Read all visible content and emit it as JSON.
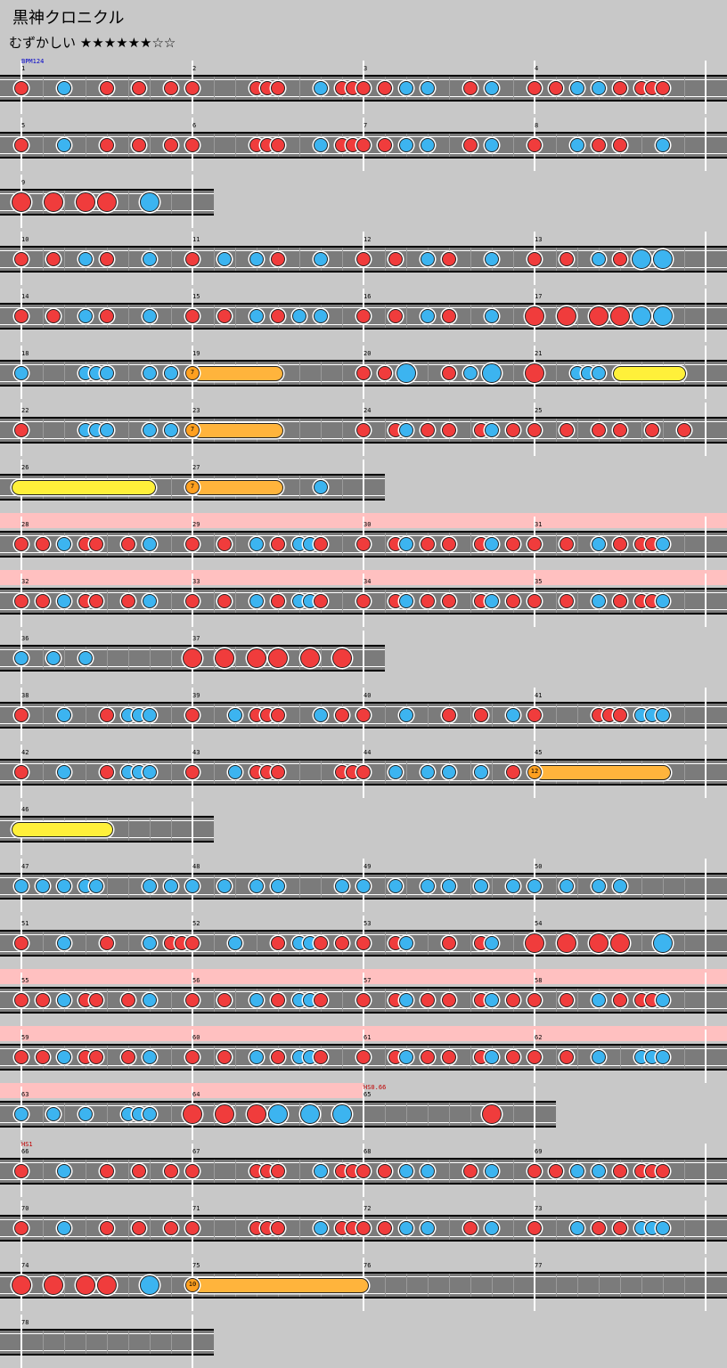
{
  "title": "黒神クロニクル",
  "difficulty": {
    "label": "むずかしい",
    "stars": "★★★★★★☆☆"
  },
  "colors": {
    "don": "#f03c3c",
    "ka": "#3cb4f0",
    "drumroll": "#fff03a",
    "balloon": "#ffb43c",
    "gogo": "#ffc0c0",
    "lane": "#7b7b7b"
  },
  "rows": [
    {
      "y": 64,
      "end": 816,
      "measures": [
        {
          "x": 24,
          "num": "1"
        },
        {
          "x": 216,
          "num": "2"
        },
        {
          "x": 408,
          "num": "3"
        },
        {
          "x": 600,
          "num": "4"
        }
      ],
      "bars": [
        24,
        216,
        408,
        600,
        792
      ],
      "events": [
        {
          "x": 24,
          "text": "BPM124",
          "kind": "bpm"
        }
      ],
      "notes": "D24 K72 D120 D156 D192 D216 D288 D300 D312 K360 D384 D396 D408 D432 K456 K480 D528 K552 D600 D624 K648 K672 D696 D720 D732 D744"
    },
    {
      "y": 128,
      "end": 816,
      "measures": [
        {
          "x": 24,
          "num": "5"
        },
        {
          "x": 216,
          "num": "6"
        },
        {
          "x": 408,
          "num": "7"
        },
        {
          "x": 600,
          "num": "8"
        }
      ],
      "bars": [
        24,
        216,
        408,
        600,
        792
      ],
      "notes": "D24 K72 D120 D156 D192 D216 D288 D300 D312 K360 D384 D396 D408 D432 K456 K480 D528 K552 D600 K648 D672 D696 K744"
    },
    {
      "y": 192,
      "end": 240,
      "measures": [
        {
          "x": 24,
          "num": "9"
        }
      ],
      "bars": [
        24,
        216
      ],
      "notes": "DL24 DL60 DL96 DL120 KL168"
    },
    {
      "y": 256,
      "end": 816,
      "measures": [
        {
          "x": 24,
          "num": "10"
        },
        {
          "x": 216,
          "num": "11"
        },
        {
          "x": 408,
          "num": "12"
        },
        {
          "x": 600,
          "num": "13"
        }
      ],
      "bars": [
        24,
        216,
        408,
        600,
        792
      ],
      "notes": "D24 D60 K96 D120 K168 D216 K252 K288 D312 K360 D408 D444 K480 D504 K552 D600 D636 K672 D696 KL720 KL744"
    },
    {
      "y": 320,
      "end": 816,
      "measures": [
        {
          "x": 24,
          "num": "14"
        },
        {
          "x": 216,
          "num": "15"
        },
        {
          "x": 408,
          "num": "16"
        },
        {
          "x": 600,
          "num": "17"
        }
      ],
      "bars": [
        24,
        216,
        408,
        600,
        792
      ],
      "notes": "D24 D60 K96 D120 K168 D216 D252 K288 D312 K336 K360 D408 D444 K480 D504 K552 DL600 DL636 DL672 DL696 KL720 KL744"
    },
    {
      "y": 384,
      "end": 816,
      "measures": [
        {
          "x": 24,
          "num": "18"
        },
        {
          "x": 216,
          "num": "19"
        },
        {
          "x": 408,
          "num": "20"
        },
        {
          "x": 600,
          "num": "21"
        }
      ],
      "bars": [
        24,
        216,
        408,
        600,
        792
      ],
      "rolls": [
        {
          "type": "balloon",
          "x1": 216,
          "x2": 318,
          "count": "7"
        },
        {
          "type": "drumroll",
          "x1": 688,
          "x2": 770
        }
      ],
      "notes": "K24 K96 K108 K120 K168 K192 D408 D432 KL456 D504 K528 KL552 DL600 K648 K660 K672"
    },
    {
      "y": 448,
      "end": 816,
      "measures": [
        {
          "x": 24,
          "num": "22"
        },
        {
          "x": 216,
          "num": "23"
        },
        {
          "x": 408,
          "num": "24"
        },
        {
          "x": 600,
          "num": "25"
        }
      ],
      "bars": [
        24,
        216,
        408,
        600,
        792
      ],
      "rolls": [
        {
          "type": "balloon",
          "x1": 216,
          "x2": 318,
          "count": "7"
        }
      ],
      "notes": "D24 K96 K108 K120 K168 K192 D408 D444 K456 D480 D504 D540 K552 D576 D600 D636 D672 D696 D732 D768"
    },
    {
      "y": 512,
      "end": 432,
      "measures": [
        {
          "x": 24,
          "num": "26"
        },
        {
          "x": 216,
          "num": "27"
        }
      ],
      "bars": [
        24,
        216,
        408
      ],
      "rolls": [
        {
          "type": "drumroll",
          "x1": 13,
          "x2": 175
        },
        {
          "type": "balloon",
          "x1": 216,
          "x2": 318,
          "count": "7"
        }
      ],
      "notes": "K360"
    },
    {
      "y": 576,
      "end": 816,
      "gogo": [
        0,
        816
      ],
      "measures": [
        {
          "x": 24,
          "num": "28"
        },
        {
          "x": 216,
          "num": "29"
        },
        {
          "x": 408,
          "num": "30"
        },
        {
          "x": 600,
          "num": "31"
        }
      ],
      "bars": [
        24,
        216,
        408,
        600,
        792
      ],
      "notes": "D24 D48 K72 D96 D108 D144 K168 D216 D252 K288 D312 K336 K348 D360 D408 D444 K456 D480 D504 D540 K552 D576 D600 D636 K672 D696 D720 D732 K744"
    },
    {
      "y": 640,
      "end": 816,
      "gogo": [
        0,
        816
      ],
      "measures": [
        {
          "x": 24,
          "num": "32"
        },
        {
          "x": 216,
          "num": "33"
        },
        {
          "x": 408,
          "num": "34"
        },
        {
          "x": 600,
          "num": "35"
        }
      ],
      "bars": [
        24,
        216,
        408,
        600,
        792
      ],
      "notes": "D24 D48 K72 D96 D108 D144 K168 D216 D252 K288 D312 K336 K348 D360 D408 D444 K456 D480 D504 D540 K552 D576 D600 D636 K672 D696 D720 D732 K744"
    },
    {
      "y": 704,
      "end": 432,
      "measures": [
        {
          "x": 24,
          "num": "36"
        },
        {
          "x": 216,
          "num": "37"
        }
      ],
      "bars": [
        24,
        216,
        408
      ],
      "notes": "K24 K60 K96 DL216 DL252 DL288 DL312 DL348 DL384"
    },
    {
      "y": 768,
      "end": 816,
      "measures": [
        {
          "x": 24,
          "num": "38"
        },
        {
          "x": 216,
          "num": "39"
        },
        {
          "x": 408,
          "num": "40"
        },
        {
          "x": 600,
          "num": "41"
        }
      ],
      "bars": [
        24,
        216,
        408,
        600,
        792
      ],
      "notes": "D24 K72 D120 K144 K156 K168 D216 K264 D288 D300 D312 K360 D384 D408 K456 D504 D540 K576 D600 D672 D684 D696 K720 K732 K744"
    },
    {
      "y": 832,
      "end": 816,
      "measures": [
        {
          "x": 24,
          "num": "42"
        },
        {
          "x": 216,
          "num": "43"
        },
        {
          "x": 408,
          "num": "44"
        },
        {
          "x": 600,
          "num": "45"
        }
      ],
      "bars": [
        24,
        216,
        408,
        600,
        792
      ],
      "rolls": [
        {
          "type": "balloon",
          "x1": 600,
          "x2": 753,
          "count": "12"
        }
      ],
      "notes": "D24 K72 D120 K144 K156 K168 D216 K264 D288 D300 D312 D384 D396 D408 K444 K480 K504 K540 D576"
    },
    {
      "y": 896,
      "end": 240,
      "measures": [
        {
          "x": 24,
          "num": "46"
        }
      ],
      "bars": [
        24,
        216
      ],
      "rolls": [
        {
          "type": "drumroll",
          "x1": 13,
          "x2": 127
        }
      ],
      "notes": ""
    },
    {
      "y": 960,
      "end": 816,
      "measures": [
        {
          "x": 24,
          "num": "47"
        },
        {
          "x": 216,
          "num": "48"
        },
        {
          "x": 408,
          "num": "49"
        },
        {
          "x": 600,
          "num": "50"
        }
      ],
      "bars": [
        24,
        216,
        408,
        600,
        792
      ],
      "notes": "K24 K48 K72 K96 K108 K168 K192 K216 K252 K288 K312 K384 K408 K444 K480 K504 K540 K576 K600 K636 K672 K696"
    },
    {
      "y": 1024,
      "end": 816,
      "measures": [
        {
          "x": 24,
          "num": "51"
        },
        {
          "x": 216,
          "num": "52"
        },
        {
          "x": 408,
          "num": "53"
        },
        {
          "x": 600,
          "num": "54"
        }
      ],
      "bars": [
        24,
        216,
        408,
        600,
        792
      ],
      "notes": "D24 K72 D120 K168 D192 D204 D216 K264 D312 K336 K348 D360 D384 D408 D444 K456 D504 D540 K552 DL600 DL636 DL672 DL696 KL744"
    },
    {
      "y": 1088,
      "end": 816,
      "gogo": [
        0,
        816
      ],
      "measures": [
        {
          "x": 24,
          "num": "55"
        },
        {
          "x": 216,
          "num": "56"
        },
        {
          "x": 408,
          "num": "57"
        },
        {
          "x": 600,
          "num": "58"
        }
      ],
      "bars": [
        24,
        216,
        408,
        600,
        792
      ],
      "notes": "D24 D48 K72 D96 D108 D144 K168 D216 D252 K288 D312 K336 K348 D360 D408 D444 K456 D480 D504 D540 K552 D576 D600 D636 K672 D696 D720 D732 K744"
    },
    {
      "y": 1152,
      "end": 816,
      "gogo": [
        0,
        816
      ],
      "measures": [
        {
          "x": 24,
          "num": "59"
        },
        {
          "x": 216,
          "num": "60"
        },
        {
          "x": 408,
          "num": "61"
        },
        {
          "x": 600,
          "num": "62"
        }
      ],
      "bars": [
        24,
        216,
        408,
        600,
        792
      ],
      "notes": "D24 D48 K72 D96 D108 D144 K168 D216 D252 K288 D312 K336 K348 D360 D408 D444 K456 D480 D504 D540 K552 D576 D600 D636 K672 K720 K732 K744"
    },
    {
      "y": 1216,
      "end": 624,
      "gogo": [
        0,
        408
      ],
      "measures": [
        {
          "x": 24,
          "num": "63"
        },
        {
          "x": 216,
          "num": "64"
        },
        {
          "x": 408,
          "num": "65"
        }
      ],
      "bars": [
        24,
        216,
        408,
        600
      ],
      "events": [
        {
          "x": 408,
          "text": "HS0.66",
          "kind": "hs"
        }
      ],
      "notes": "K24 K60 K96 K144 K156 K168 DL216 DL252 DL288 KL312 KL348 KL384 DL552"
    },
    {
      "y": 1280,
      "end": 816,
      "measures": [
        {
          "x": 24,
          "num": "66"
        },
        {
          "x": 216,
          "num": "67"
        },
        {
          "x": 408,
          "num": "68"
        },
        {
          "x": 600,
          "num": "69"
        }
      ],
      "bars": [
        24,
        216,
        408,
        600,
        792
      ],
      "events": [
        {
          "x": 24,
          "text": "HS1",
          "kind": "hs"
        }
      ],
      "notes": "D24 K72 D120 D156 D192 D216 D288 D300 D312 K360 D384 D396 D408 D432 K456 K480 D528 K552 D600 D624 K648 K672 D696 D720 D732 D744"
    },
    {
      "y": 1344,
      "end": 816,
      "measures": [
        {
          "x": 24,
          "num": "70"
        },
        {
          "x": 216,
          "num": "71"
        },
        {
          "x": 408,
          "num": "72"
        },
        {
          "x": 600,
          "num": "73"
        }
      ],
      "bars": [
        24,
        216,
        408,
        600,
        792
      ],
      "notes": "D24 K72 D120 D156 D192 D216 D288 D300 D312 K360 D384 D396 D408 D432 K456 K480 D528 K552 D600 K648 D672 D696 K720 K732 K744"
    },
    {
      "y": 1408,
      "end": 816,
      "measures": [
        {
          "x": 24,
          "num": "74"
        },
        {
          "x": 216,
          "num": "75"
        },
        {
          "x": 408,
          "num": "76"
        },
        {
          "x": 600,
          "num": "77"
        }
      ],
      "bars": [
        24,
        216,
        408,
        600,
        792
      ],
      "rolls": [
        {
          "type": "balloon",
          "x1": 216,
          "x2": 414,
          "count": "10"
        }
      ],
      "notes": "DL24 DL60 DL96 DL120 KL168"
    },
    {
      "y": 1472,
      "end": 240,
      "measures": [
        {
          "x": 24,
          "num": "78"
        }
      ],
      "bars": [
        24,
        216
      ],
      "notes": ""
    }
  ]
}
